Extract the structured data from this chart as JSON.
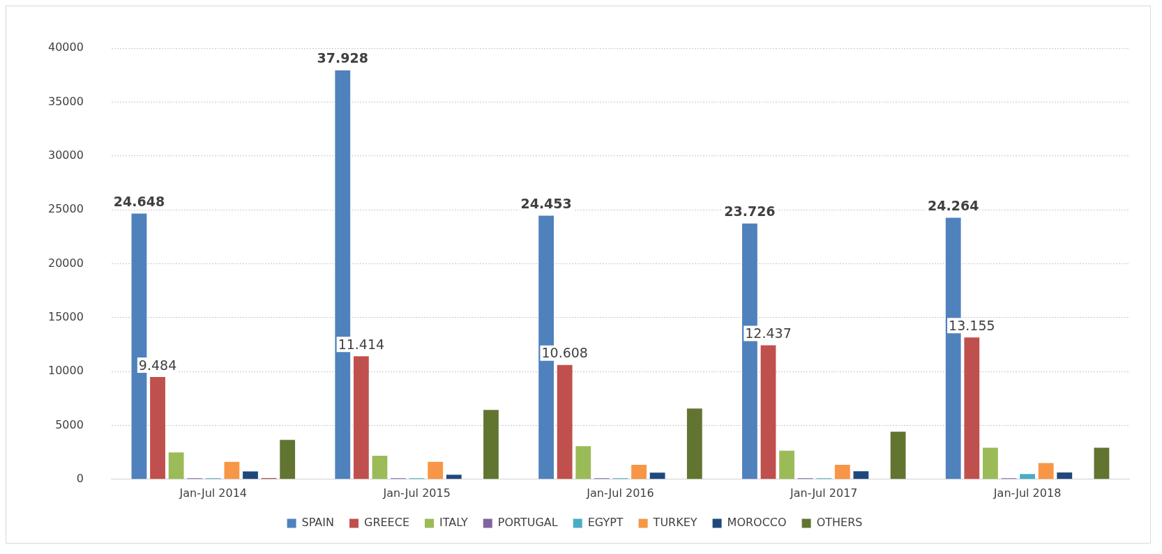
{
  "chart_data": {
    "type": "bar",
    "categories": [
      "Jan-Jul 2014",
      "Jan-Jul 2015",
      "Jan-Jul 2016",
      "Jan-Jul 2017",
      "Jan-Jul 2018"
    ],
    "series": [
      {
        "name": "SPAIN",
        "color": "#4f81bd",
        "values": [
          24648,
          37928,
          24453,
          23726,
          24264
        ],
        "value_labels": [
          "24.648",
          "37.928",
          "24.453",
          "23.726",
          "24.264"
        ]
      },
      {
        "name": "GREECE",
        "color": "#c0504d",
        "values": [
          9484,
          11414,
          10608,
          12437,
          13155
        ],
        "value_labels": [
          "9.484",
          "11.414",
          "10.608",
          "12.437",
          "13.155"
        ]
      },
      {
        "name": "ITALY",
        "color": "#9bbb59",
        "values": [
          2490,
          2190,
          3080,
          2650,
          2930
        ]
      },
      {
        "name": "PORTUGAL",
        "color": "#8064a2",
        "values": [
          100,
          100,
          100,
          100,
          100
        ]
      },
      {
        "name": "EGYPT",
        "color": "#4bacc6",
        "values": [
          100,
          100,
          100,
          100,
          490
        ]
      },
      {
        "name": "TURKEY",
        "color": "#f79646",
        "values": [
          1620,
          1620,
          1340,
          1340,
          1500
        ]
      },
      {
        "name": "MOROCCO",
        "color": "#1f497d",
        "values": [
          730,
          430,
          610,
          750,
          630
        ]
      },
      {
        "color": "#8b2c2a",
        "values": [
          100,
          null,
          null,
          null,
          null
        ]
      },
      {
        "name": "OTHERS",
        "color": "#617531",
        "values": [
          3650,
          6430,
          6570,
          4410,
          2930
        ]
      }
    ],
    "ylim": [
      0,
      40000
    ],
    "yticks": [
      0,
      5000,
      10000,
      15000,
      20000,
      25000,
      30000,
      35000,
      40000
    ],
    "grid": "y",
    "legend": "bottom"
  }
}
